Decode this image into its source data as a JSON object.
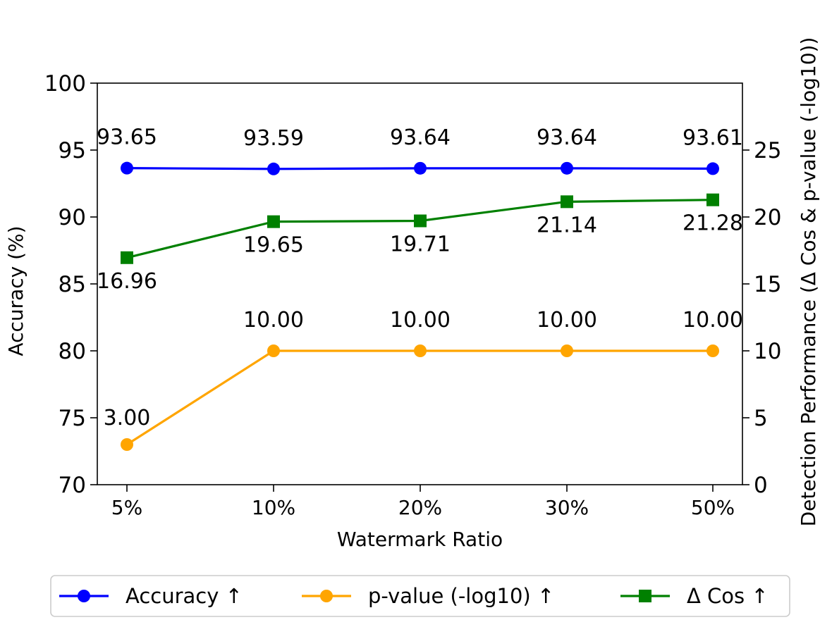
{
  "chart_data": {
    "type": "line",
    "categories": [
      "5%",
      "10%",
      "20%",
      "30%",
      "50%"
    ],
    "xlabel": "Watermark Ratio",
    "ylabel_left": "Accuracy (%)",
    "ylabel_right": "Detection Performance (Δ Cos & p-value (-log10))",
    "ylim_left": [
      70,
      100
    ],
    "yticks_left": [
      70,
      75,
      80,
      85,
      90,
      95,
      100
    ],
    "ylim_right": [
      0,
      30
    ],
    "yticks_right": [
      0,
      5,
      10,
      15,
      20,
      25
    ],
    "grid": false,
    "legend_position": "bottom",
    "series": [
      {
        "name": "Accuracy ↑",
        "axis": "left",
        "color": "#0000ff",
        "marker": "circle",
        "values": [
          93.65,
          93.59,
          93.64,
          93.64,
          93.61
        ],
        "labels": [
          "93.65",
          "93.59",
          "93.64",
          "93.64",
          "93.61"
        ]
      },
      {
        "name": "p-value (-log10) ↑",
        "axis": "right",
        "color": "#ffa500",
        "marker": "circle",
        "values": [
          3.0,
          10.0,
          10.0,
          10.0,
          10.0
        ],
        "labels": [
          "3.00",
          "10.00",
          "10.00",
          "10.00",
          "10.00"
        ]
      },
      {
        "name": "Δ Cos ↑",
        "axis": "right",
        "color": "#008000",
        "marker": "square",
        "values": [
          16.96,
          19.65,
          19.71,
          21.14,
          21.28
        ],
        "labels": [
          "16.96",
          "19.65",
          "19.71",
          "21.14",
          "21.28"
        ]
      }
    ]
  }
}
